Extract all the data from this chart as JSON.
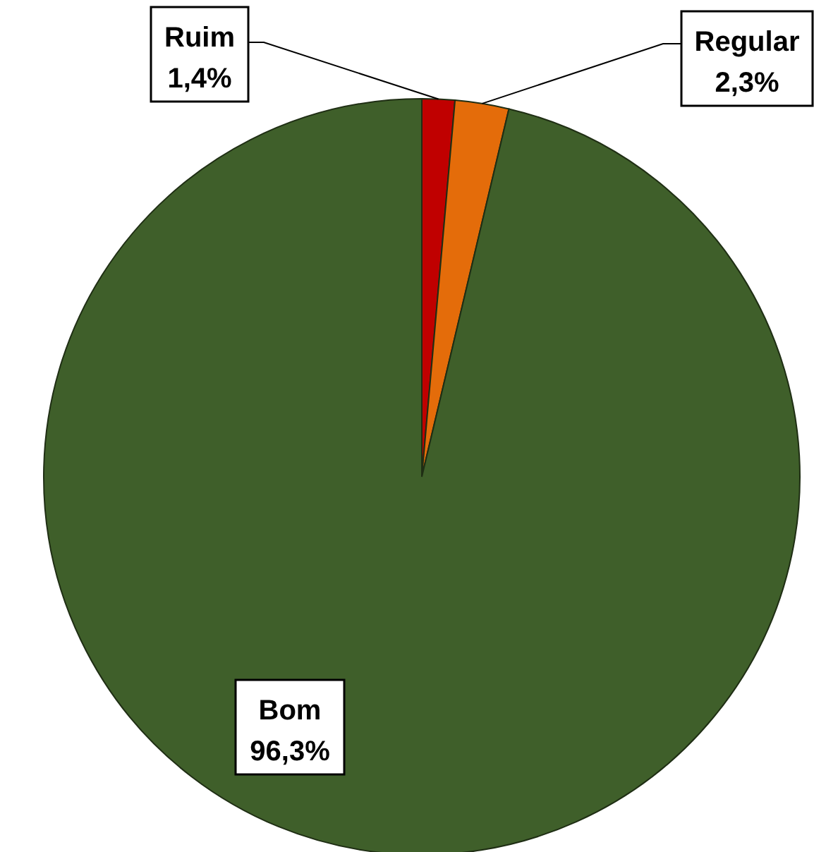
{
  "chart_data": {
    "type": "pie",
    "categories": [
      "Ruim",
      "Regular",
      "Bom"
    ],
    "values": [
      1.4,
      2.3,
      96.3
    ],
    "colors": [
      "#c00000",
      "#e46c0a",
      "#3f5f2a"
    ],
    "value_labels": [
      "1,4%",
      "2,3%",
      "96,3%"
    ]
  }
}
